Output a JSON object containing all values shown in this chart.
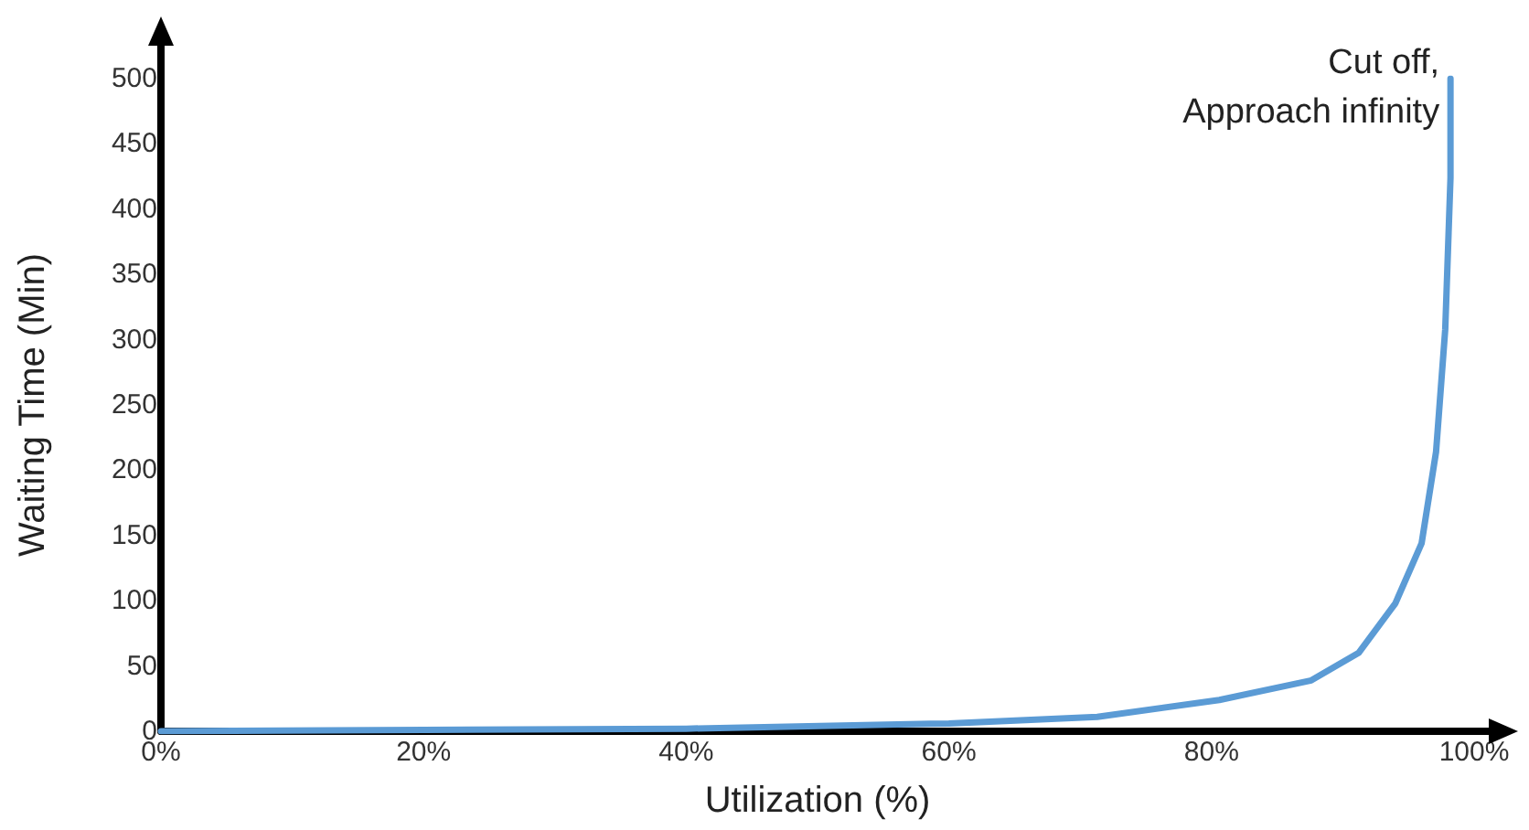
{
  "chart_data": {
    "type": "line",
    "xlabel": "Utilization (%)",
    "ylabel": "Waiting Time (Min)",
    "x": [
      0,
      20,
      40,
      60,
      71.3,
      80.6,
      87.6,
      91.2,
      94,
      96,
      97.1,
      97.8,
      98.2,
      98.2
    ],
    "series": [
      {
        "color": "#5b9bd5",
        "values": [
          0,
          1,
          2,
          6,
          11,
          24,
          39,
          60,
          98,
          144,
          214,
          308,
          424,
          500
        ]
      }
    ],
    "xlim": [
      0,
      100
    ],
    "xticks": [
      {
        "value": 0,
        "label": "0%"
      },
      {
        "value": 20,
        "label": "20%"
      },
      {
        "value": 40,
        "label": "40%"
      },
      {
        "value": 60,
        "label": "60%"
      },
      {
        "value": 80,
        "label": "80%"
      },
      {
        "value": 100,
        "label": "100%"
      }
    ],
    "ylim": [
      0,
      500
    ],
    "yticks": [
      0,
      50,
      100,
      150,
      200,
      250,
      300,
      350,
      400,
      450,
      500
    ],
    "annotations": [
      {
        "text": "Cut off,\nApproach infinity",
        "x": 98.2,
        "y": 500
      }
    ],
    "grid": false,
    "marker": "none",
    "line_style": "solid"
  }
}
